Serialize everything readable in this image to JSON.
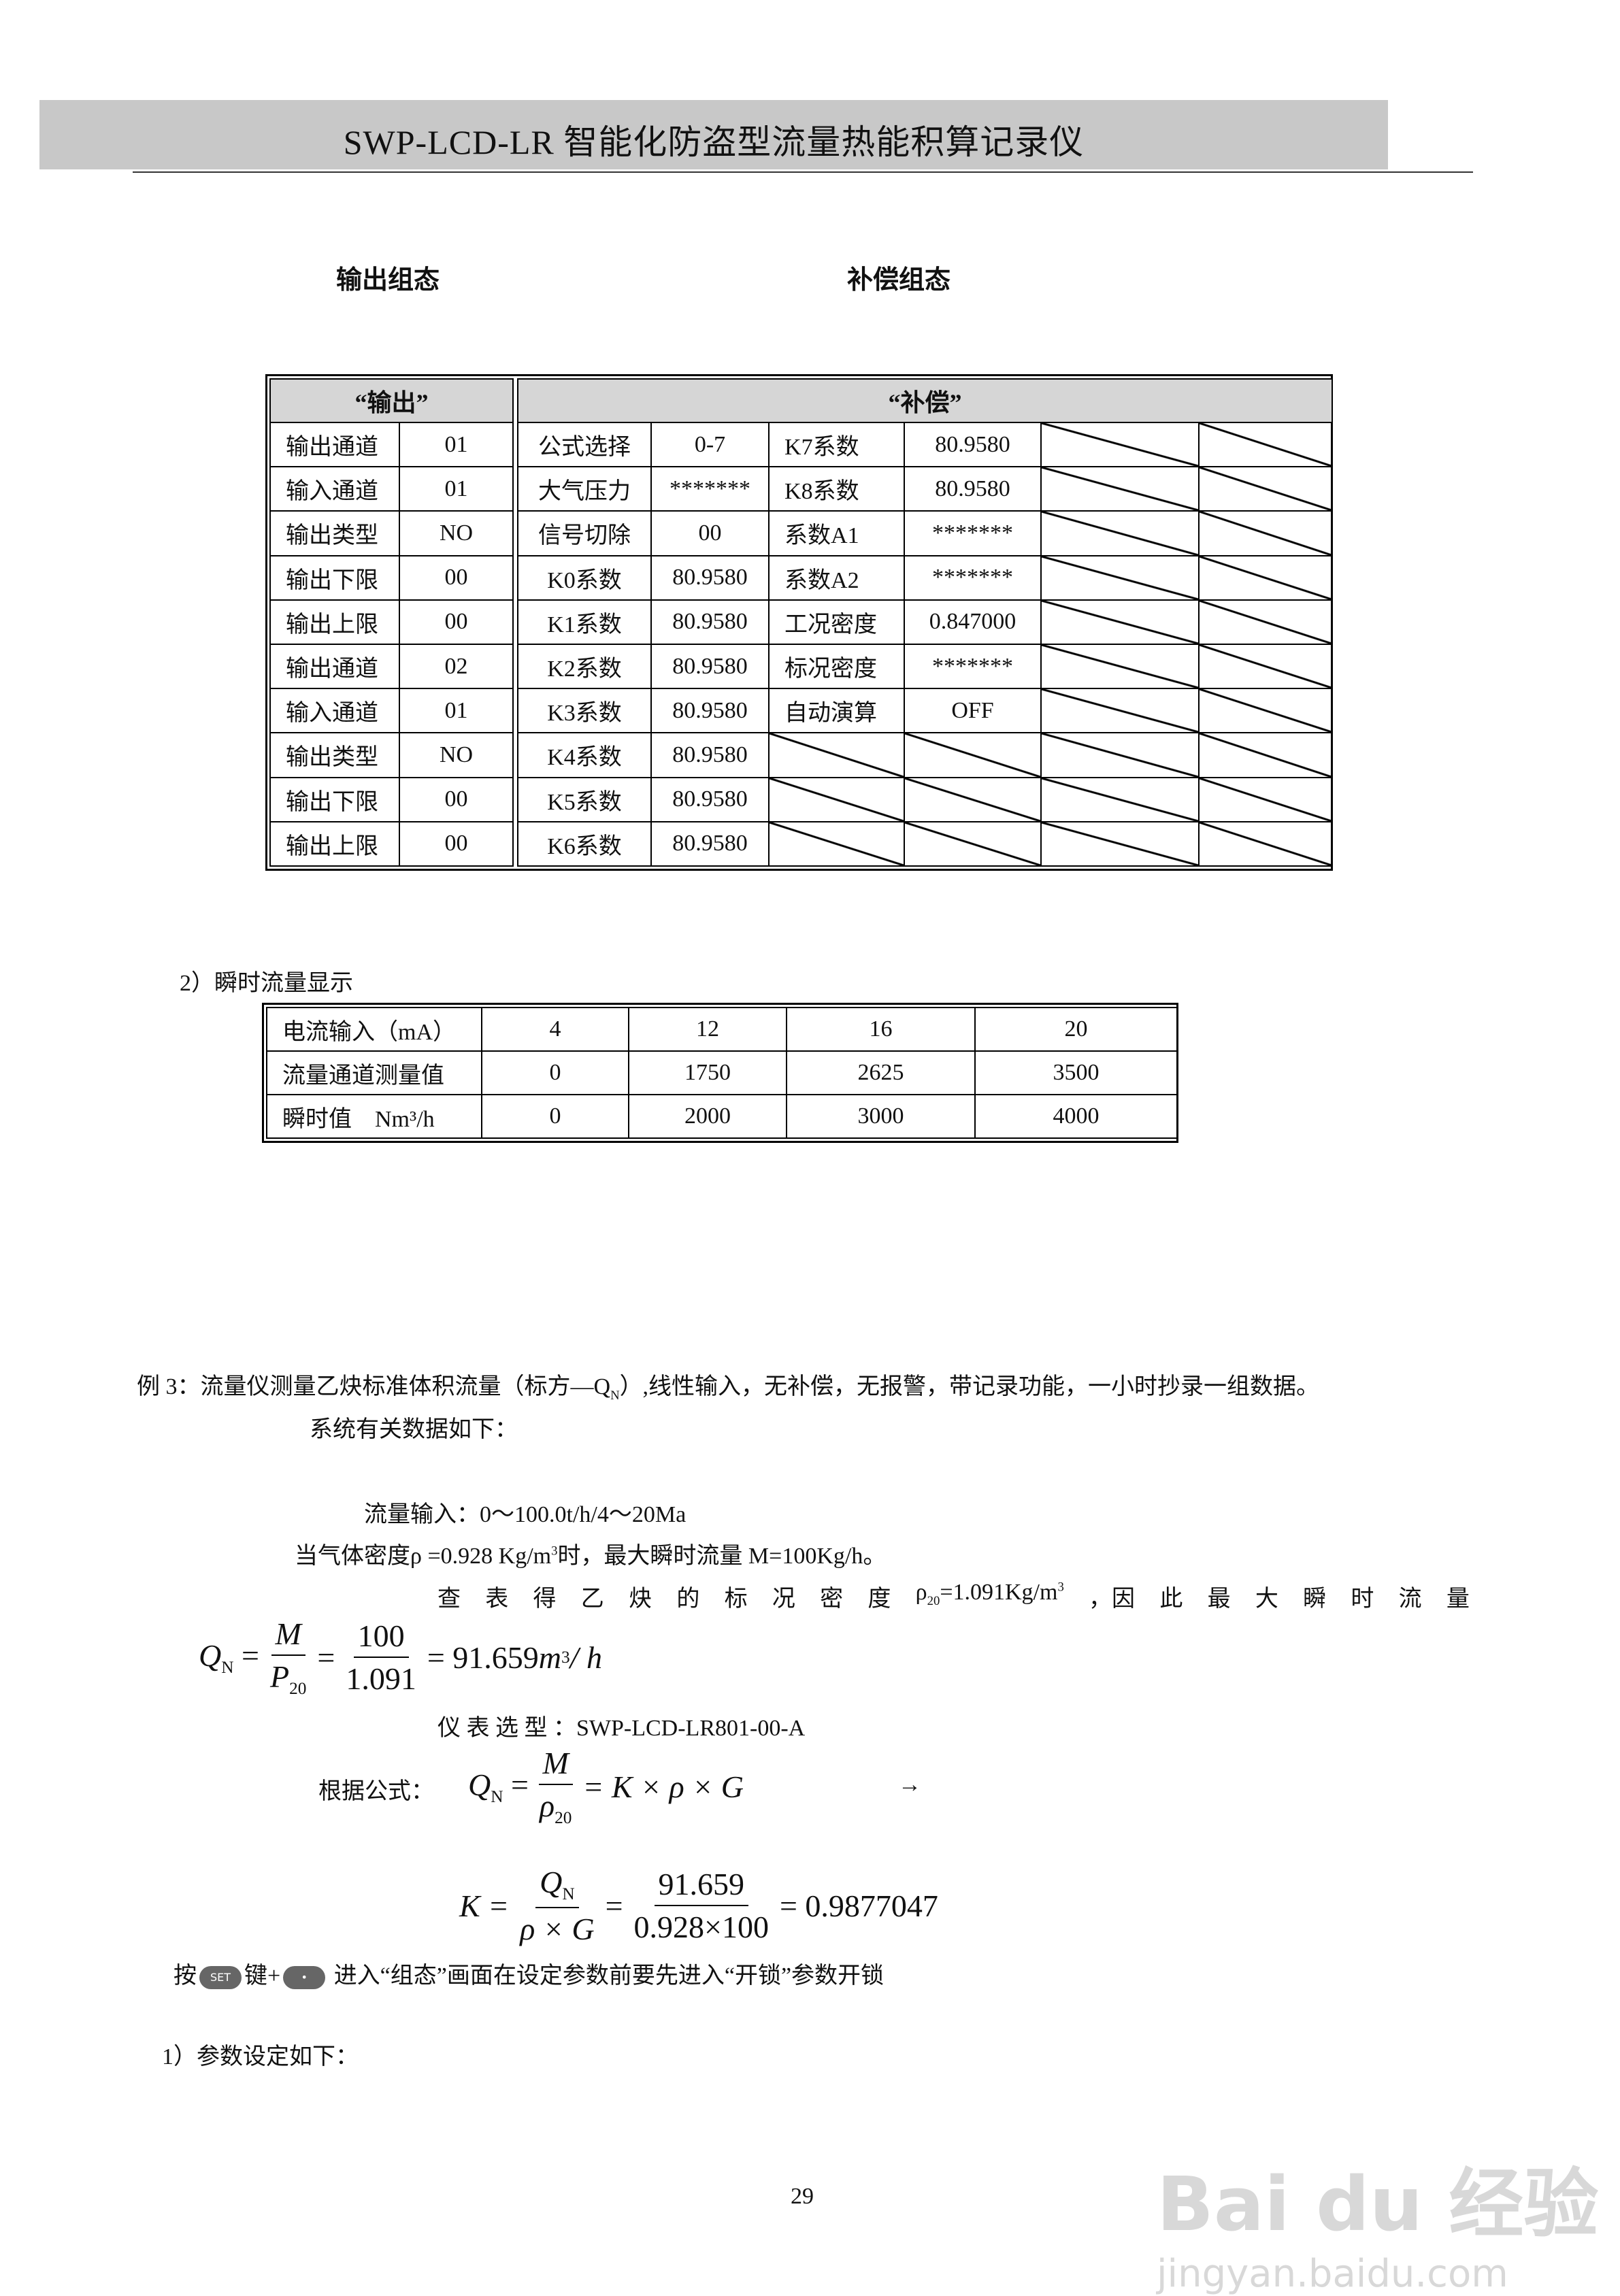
{
  "header": {
    "title": "SWP-LCD-LR 智能化防盗型流量热能积算记录仪"
  },
  "section_labels": {
    "output": "输出组态",
    "compensation": "补偿组态"
  },
  "config_table": {
    "output_header": "“输出”",
    "compensation_header": "“补偿”",
    "output_rows": [
      [
        "输出通道",
        "01"
      ],
      [
        "输入通道",
        "01"
      ],
      [
        "输出类型",
        "NO"
      ],
      [
        "输出下限",
        "00"
      ],
      [
        "输出上限",
        "00"
      ],
      [
        "输出通道",
        "02"
      ],
      [
        "输入通道",
        "01"
      ],
      [
        "输出类型",
        "NO"
      ],
      [
        "输出下限",
        "00"
      ],
      [
        "输出上限",
        "00"
      ]
    ],
    "compensation_rows": [
      [
        "公式选择",
        "0-7",
        "K7系数",
        "80.9580",
        null,
        null
      ],
      [
        "大气压力",
        "*******",
        "K8系数",
        "80.9580",
        null,
        null
      ],
      [
        "信号切除",
        "00",
        "系数A1",
        "*******",
        null,
        null
      ],
      [
        "K0系数",
        "80.9580",
        "系数A2",
        "*******",
        null,
        null
      ],
      [
        "K1系数",
        "80.9580",
        "工况密度",
        "0.847000",
        null,
        null
      ],
      [
        "K2系数",
        "80.9580",
        "标况密度",
        "*******",
        null,
        null
      ],
      [
        "K3系数",
        "80.9580",
        "自动演算",
        "OFF",
        null,
        null
      ],
      [
        "K4系数",
        "80.9580",
        null,
        null,
        null,
        null
      ],
      [
        "K5系数",
        "80.9580",
        null,
        null,
        null,
        null
      ],
      [
        "K6系数",
        "80.9580",
        null,
        null,
        null,
        null
      ]
    ]
  },
  "flow_section": {
    "title": "2）瞬时流量显示",
    "rows": [
      [
        "电流输入（mA）",
        "4",
        "12",
        "16",
        "20"
      ],
      [
        "流量通道测量值",
        "0",
        "1750",
        "2625",
        "3500"
      ],
      [
        "瞬时值　Nm³/h",
        "0",
        "2000",
        "3000",
        "4000"
      ]
    ]
  },
  "example": {
    "line1": "例 3：流量仪测量乙炔标准体积流量（标方—Q",
    "line1_sub": "N",
    "line1_tail": "）,线性输入，无补偿，无报警，带记录功能，一小时抄录一组数据。",
    "line2": "系统有关数据如下：",
    "flow_input": "流量输入：0～100.0t/h/4～20Ma",
    "density_a": "当气体密度ρ =0.928 Kg/m",
    "density_sup": "3",
    "density_b": "时，最大瞬时流量 M=100Kg/h。",
    "lookup_words": [
      "查",
      "表",
      "得",
      "乙",
      "炔",
      "的",
      "标",
      "况",
      "密",
      "度"
    ],
    "lookup_rho": "ρ",
    "lookup_rho_sub": "20",
    "lookup_rho_val": "=1.091Kg/m",
    "lookup_sup": "3",
    "lookup_tail_words": [
      "，因",
      "此",
      "最",
      "大",
      "瞬",
      "时",
      "流",
      "量"
    ],
    "formula1": {
      "lhs": "Q",
      "lhs_sub": "N",
      "num1": "M",
      "den1": "P",
      "den1_sub": "20",
      "num2": "100",
      "den2": "1.091",
      "result": "= 91.659",
      "unit": "m",
      "unit_sup": "3",
      "unit_tail": " / h"
    },
    "model_label": "仪 表 选 型 ：",
    "model_value": "SWP-LCD-LR801-00-A",
    "formula_label": "根据公式：",
    "formula2": {
      "lhs": "Q",
      "lhs_sub": "N",
      "num": "M",
      "den": "ρ",
      "den_sub": "20",
      "rhs": "= K × ρ × G",
      "arrow": "→"
    },
    "formula3": {
      "lhs": "K =",
      "num1": "Q",
      "num1_sub": "N",
      "den1": "ρ × G",
      "num2": "91.659",
      "den2": "0.928×100",
      "result": "= 0.9877047"
    },
    "keys_line": {
      "press": "按",
      "set_key": "SET",
      "plus": "键+",
      "dot_key": "•",
      "tail": "进入“组态”画面在设定参数前要先进入“开锁”参数开锁"
    },
    "params_title": "1）参数设定如下："
  },
  "page_number": "29",
  "watermark": {
    "brand": "Bai du 经验",
    "url": "jingyan.baidu.com"
  }
}
